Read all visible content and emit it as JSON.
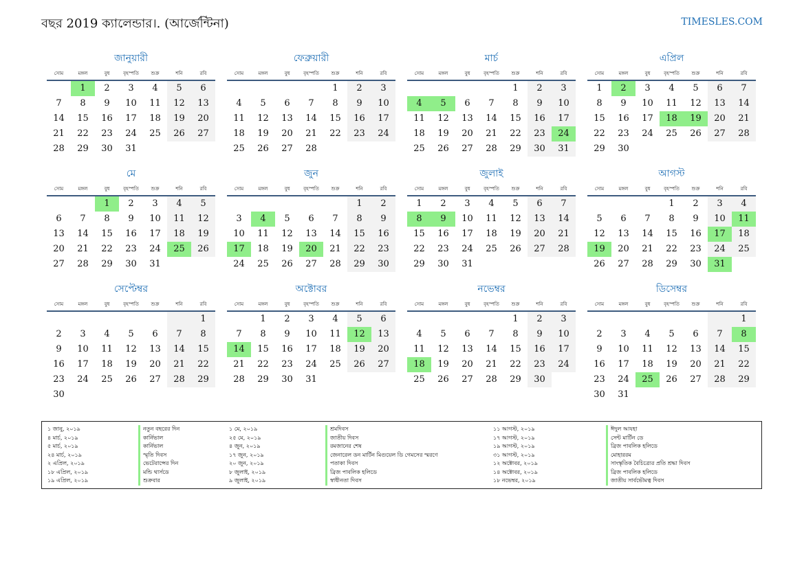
{
  "header": {
    "title": "বছর 2019 ক্যালেন্ডার।. (আর্জেন্টিনা)",
    "site": "TIMESLES.COM"
  },
  "weekdays": [
    "সোম",
    "মঙ্গল",
    "বুধ",
    "বৃহস্পতি",
    "শুক্র",
    "শনি",
    "রবি"
  ],
  "months": [
    {
      "name": "জানুয়ারী",
      "offset": 1,
      "days": 31,
      "holidays": [
        1
      ]
    },
    {
      "name": "ফেব্রুয়ারী",
      "offset": 4,
      "days": 28,
      "holidays": []
    },
    {
      "name": "মার্চ",
      "offset": 4,
      "days": 31,
      "holidays": [
        4,
        5,
        24
      ]
    },
    {
      "name": "এপ্রিল",
      "offset": 0,
      "days": 30,
      "holidays": [
        2,
        18,
        19
      ]
    },
    {
      "name": "মে",
      "offset": 2,
      "days": 31,
      "holidays": [
        1,
        25
      ]
    },
    {
      "name": "জুন",
      "offset": 5,
      "days": 30,
      "holidays": [
        4,
        17,
        20
      ]
    },
    {
      "name": "জুলাই",
      "offset": 0,
      "days": 31,
      "holidays": [
        8,
        9
      ]
    },
    {
      "name": "আগস্ট",
      "offset": 3,
      "days": 31,
      "holidays": [
        11,
        17,
        19,
        31
      ]
    },
    {
      "name": "সেপ্টেম্বর",
      "offset": 6,
      "days": 30,
      "holidays": []
    },
    {
      "name": "অক্টোবর",
      "offset": 1,
      "days": 31,
      "holidays": [
        12,
        14
      ]
    },
    {
      "name": "নভেম্বর",
      "offset": 4,
      "days": 30,
      "holidays": [
        18
      ]
    },
    {
      "name": "ডিসেম্বর",
      "offset": 6,
      "days": 31,
      "holidays": [
        8,
        25
      ]
    }
  ],
  "legend": {
    "col1_dates": [
      "১ জানু, ২০১৯",
      "৪ মার্চ, ২০১৯",
      "৫ মার্চ, ২০১৯",
      "২৪ মার্চ, ২০১৯",
      "২ এপ্রিল, ২০১৯",
      "১৮ এপ্রিল, ২০১৯",
      "১৯ এপ্রিল, ২০১৯"
    ],
    "col1_names": [
      "নতুন বছরের দিন",
      "কার্নিভাল",
      "কার্নিভাল",
      "স্মৃতি দিবস",
      "ভেটেরান্সের দিন",
      "মন্ডি থার্সডে",
      "শুক্রবার"
    ],
    "col2_dates": [
      "১ মে, ২০১৯",
      "২৫ মে, ২০১৯",
      "৪ জুন, ২০১৯",
      "১৭ জুন, ২০১৯",
      "২০ জুন, ২০১৯",
      "৮ জুলাই, ২০১৯",
      "৯ জুলাই, ২০১৯"
    ],
    "col2_names": [
      "শ্রমদিবস",
      "জাতীয় দিবস",
      "রমজানের শেষ",
      "জেনারেল ডন মার্টিন মিগুয়েল ডি গেমসের স্মরণে",
      "পতাকা দিবস",
      "ব্রিজ পাবলিক হলিডে",
      "স্বাধীনতা দিবস"
    ],
    "col3_dates": [
      "১১ আগস্ট, ২০১৯",
      "১৭ আগস্ট, ২০১৯",
      "১৯ আগস্ট, ২০১৯",
      "৩১ আগস্ট, ২০১৯",
      "১২ অক্টোবর, ২০১৯",
      "১৪ অক্টোবর, ২০১৯",
      "১৮ নভেম্বর, ২০১৯"
    ],
    "col3_names": [
      "ঈদুল আযহা",
      "সেন্ট মার্টিন ডে",
      "ব্রিজ পাবলিক হলিডে",
      "মোহাররম",
      "সাংস্কৃতিক বৈচিত্র্যের প্রতি শ্রদ্ধা দিবস",
      "ব্রিজ পাবলিক হলিডে",
      "জাতীয় সার্বভৌমত্ব দিবস"
    ]
  }
}
